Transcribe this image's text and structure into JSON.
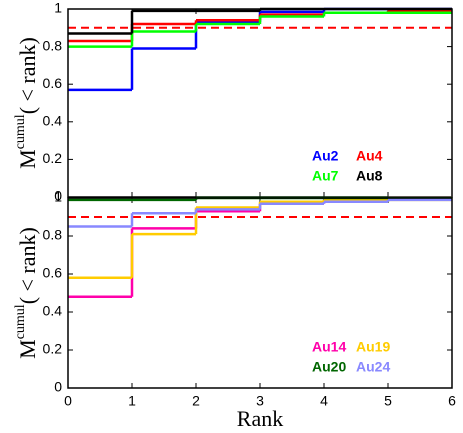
{
  "chart_data": [
    {
      "type": "step",
      "ylabel": "M",
      "ylabel_sup": "cumul",
      "ylabel_rest": "( < rank)",
      "xlim": [
        0,
        6
      ],
      "xticks": [
        0,
        1,
        2,
        3,
        4,
        5,
        6
      ],
      "ylim": [
        0,
        1
      ],
      "yticks": [
        0,
        0.2,
        0.4,
        0.6,
        0.8,
        1
      ],
      "reference_line": 0.9,
      "reference_color": "#ff0000",
      "legend": "lower right",
      "series": [
        {
          "name": "Au2",
          "color": "#0000ff",
          "values": [
            0.57,
            0.79,
            0.93,
            0.985,
            1,
            1
          ]
        },
        {
          "name": "Au4",
          "color": "#ff0000",
          "values": [
            0.83,
            0.92,
            0.94,
            0.97,
            0.98,
            0.99
          ]
        },
        {
          "name": "Au7",
          "color": "#00ff00",
          "values": [
            0.8,
            0.88,
            0.92,
            0.96,
            0.98,
            0.98
          ]
        },
        {
          "name": "Au8",
          "color": "#000000",
          "values": [
            0.87,
            0.99,
            0.99,
            1,
            1,
            1
          ]
        }
      ]
    },
    {
      "type": "step",
      "ylabel": "M",
      "ylabel_sup": "cumul",
      "ylabel_rest": "( < rank)",
      "xlabel": "Rank",
      "xlim": [
        0,
        6
      ],
      "xticks": [
        0,
        1,
        2,
        3,
        4,
        5,
        6
      ],
      "ylim": [
        0,
        1
      ],
      "yticks": [
        0,
        0.2,
        0.4,
        0.6,
        0.8,
        1
      ],
      "reference_line": 0.9,
      "reference_color": "#ff0000",
      "legend": "lower right",
      "series": [
        {
          "name": "Au14",
          "color": "#ff00aa",
          "values": [
            0.48,
            0.84,
            0.93,
            0.97,
            0.99,
            1
          ]
        },
        {
          "name": "Au19",
          "color": "#ffcc00",
          "values": [
            0.58,
            0.81,
            0.95,
            0.98,
            0.99,
            0.99
          ]
        },
        {
          "name": "Au20",
          "color": "#006600",
          "values": [
            0.99,
            0.99,
            1,
            1,
            1,
            1
          ]
        },
        {
          "name": "Au24",
          "color": "#8888ff",
          "values": [
            0.85,
            0.92,
            0.94,
            0.97,
            0.98,
            0.99
          ]
        }
      ]
    }
  ]
}
